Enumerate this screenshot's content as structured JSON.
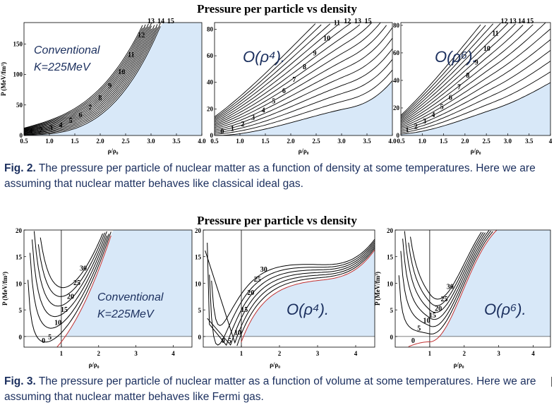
{
  "top_title": "Pressure per particle vs density",
  "bottom_title": "Pressure per particle vs density",
  "caption_fig2": {
    "label": "Fig. 2.",
    "text": " The pressure per particle of nuclear matter as a function of density at some temperatures. Here we are assuming  that nuclear matter behaves like classical ideal gas."
  },
  "caption_fig3": {
    "label": "Fig. 3.",
    "text": " The pressure per particle of nuclear matter as a function of volume at some temperatures. Here we are assuming that nuclear matter behaves like Fermi gas."
  },
  "colors": {
    "fill": "#d8e8f8",
    "curve": "#000000",
    "caption": "#1b2f5e",
    "zero_curve": "#c03030"
  },
  "chart_data": [
    {
      "type": "line",
      "panel": "fig2-conventional",
      "annotation": [
        "Conventional",
        "K=225MeV"
      ],
      "ylabel": "P (MeV/fm³)",
      "xlabel": "ρ/ρ₀",
      "xlim": [
        0.5,
        4.0
      ],
      "ylim": [
        0,
        185
      ],
      "xticks": [
        "0.5",
        "1.0",
        "1.5",
        "2.0",
        "2.5",
        "3.0",
        "3.5",
        "4.0"
      ],
      "yticks": [
        "0",
        "50",
        "100",
        "150"
      ],
      "curve_labels": [
        "1",
        "2",
        "3",
        "4",
        "5",
        "6",
        "7",
        "8",
        "9",
        "10",
        "11",
        "12",
        "13",
        "14",
        "15"
      ],
      "model": "conv"
    },
    {
      "type": "line",
      "panel": "fig2-rho4",
      "annotation": [
        "O(ρ⁴)."
      ],
      "xlabel": "ρ/ρ₀",
      "xlim": [
        0.5,
        4.0
      ],
      "ylim": [
        0,
        85
      ],
      "xticks": [
        "0.5",
        "1.0",
        "1.5",
        "2.0",
        "2.5",
        "3.0",
        "3.5",
        "4.0"
      ],
      "yticks": [
        "0",
        "20",
        "40",
        "60",
        "80"
      ],
      "curve_labels": [
        "0",
        "1",
        "2",
        "3",
        "4",
        "5",
        "6",
        "7",
        "8",
        "9",
        "10",
        "11",
        "12",
        "13",
        "15"
      ],
      "model": "r4"
    },
    {
      "type": "line",
      "panel": "fig2-rho6",
      "annotation": [
        "O(ρ⁶)."
      ],
      "xlabel": "ρ/ρ₀",
      "xlim": [
        0.5,
        4.0
      ],
      "ylim": [
        0,
        82
      ],
      "xticks": [
        "0.5",
        "1.0",
        "1.5",
        "2.0",
        "2.5",
        "3.0",
        "3.5",
        "4"
      ],
      "yticks": [
        "0",
        "20",
        "40",
        "60",
        "80"
      ],
      "curve_labels": [
        "1",
        "2",
        "3",
        "4",
        "5",
        "6",
        "7",
        "8",
        "9",
        "10",
        "11",
        "12",
        "13",
        "14",
        "15"
      ],
      "model": "r6"
    },
    {
      "type": "line",
      "panel": "fig3-conventional",
      "annotation": [
        "Conventional",
        "K=225MeV"
      ],
      "ylabel": "P (MeV/fm³)",
      "xlabel": "ρ/ρ₀",
      "xlim": [
        0,
        4.5
      ],
      "ylim": [
        -2,
        20
      ],
      "xticks": [
        "1",
        "2",
        "3",
        "4"
      ],
      "yticks": [
        "0",
        "5",
        "10",
        "15",
        "20"
      ],
      "curve_labels": [
        "0",
        "5",
        "10",
        "15",
        "20",
        "25",
        "30"
      ],
      "model": "conv"
    },
    {
      "type": "line",
      "panel": "fig3-rho4",
      "annotation": [
        "O(ρ⁴)."
      ],
      "xlabel": "ρ/ρ₀",
      "xlim": [
        0,
        4.5
      ],
      "ylim": [
        -2,
        20
      ],
      "xticks": [
        "1",
        "2",
        "3",
        "4"
      ],
      "yticks": [
        "0",
        "5",
        "10",
        "15",
        "20"
      ],
      "curve_labels": [
        "0",
        "5",
        "10",
        "15",
        "20",
        "25",
        "30"
      ],
      "model": "r4"
    },
    {
      "type": "line",
      "panel": "fig3-rho6",
      "annotation": [
        "O(ρ⁶)."
      ],
      "ylabel": "P (MeV/fm³)",
      "xlabel": "ρ/ρ₀",
      "xlim": [
        0,
        4.5
      ],
      "ylim": [
        -2,
        20
      ],
      "xticks": [
        "1",
        "2",
        "3",
        "4"
      ],
      "yticks": [
        "0",
        "5",
        "10",
        "15",
        "20"
      ],
      "curve_labels": [
        "0",
        "5",
        "10",
        "15",
        "20",
        "25",
        "30"
      ],
      "model": "r6"
    }
  ]
}
